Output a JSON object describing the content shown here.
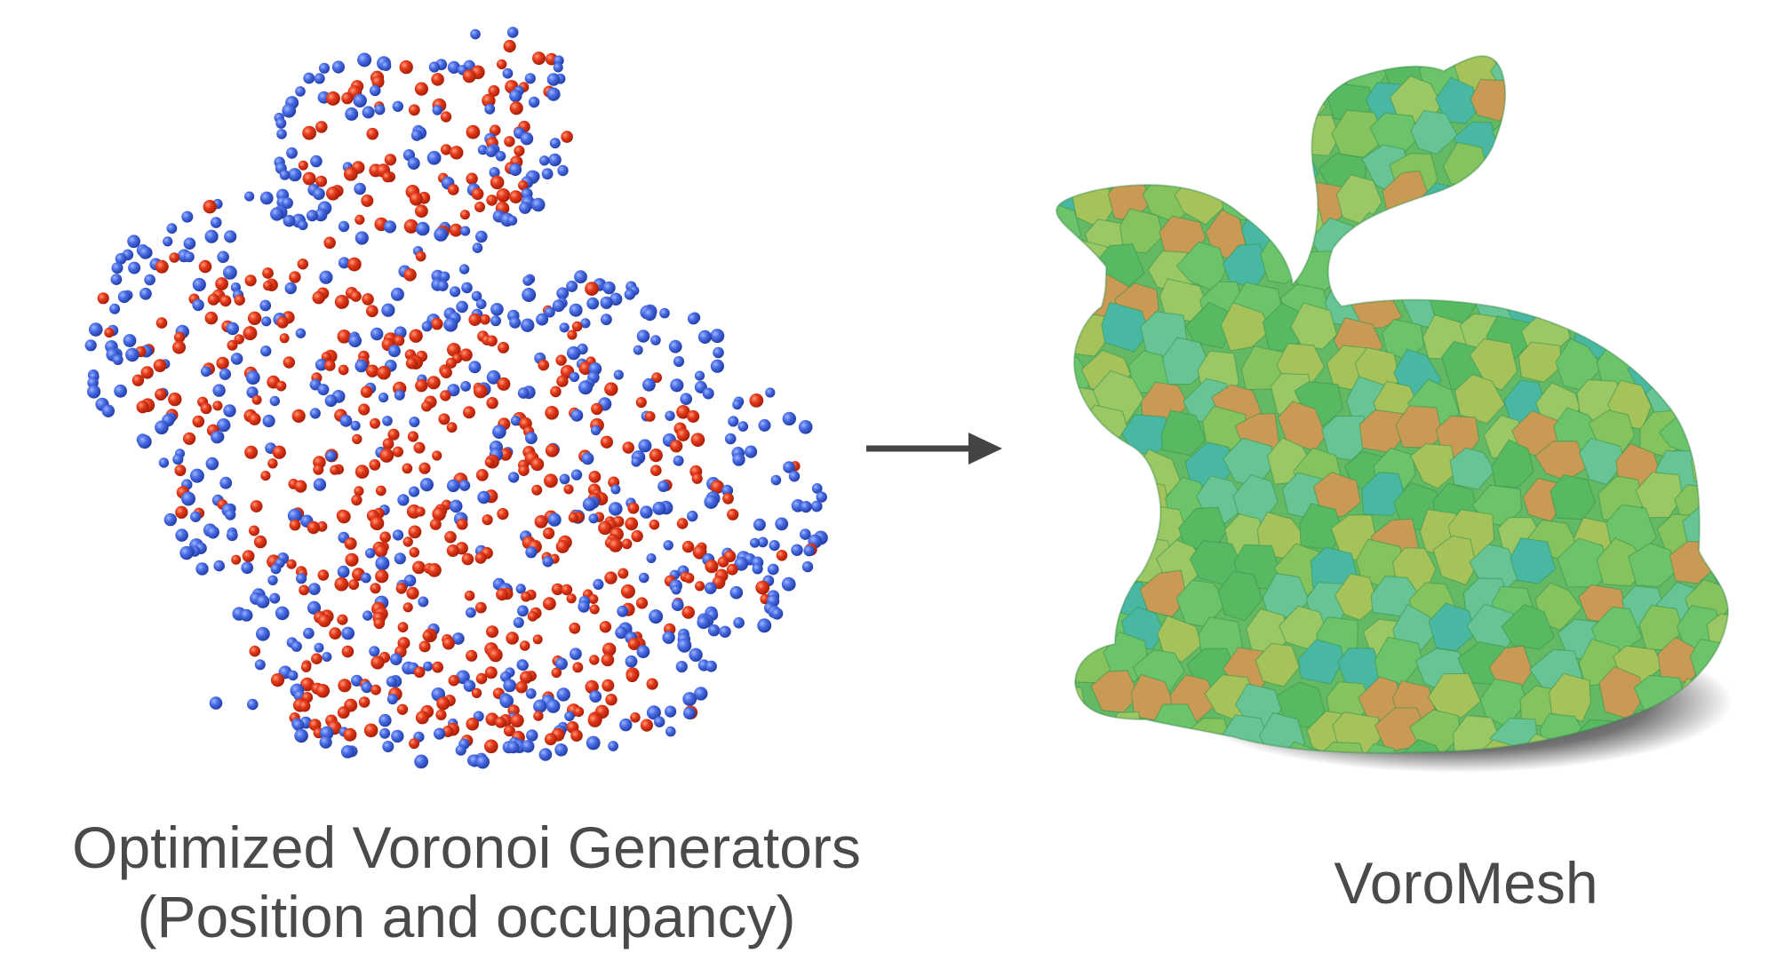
{
  "left_panel": {
    "caption_line1": "Optimized Voronoi Generators",
    "caption_line2": "(Position and occupancy)",
    "point_colors": {
      "outside": "#3f63e0",
      "inside": "#e23b1c"
    }
  },
  "right_panel": {
    "caption": "VoroMesh",
    "cell_palette": [
      "#5ec46a",
      "#74cf72",
      "#8fcf64",
      "#b3cf62",
      "#4fc3b0",
      "#d9a25b",
      "#6fd0a0",
      "#a8d46c"
    ]
  },
  "arrow": {
    "color": "#444444"
  }
}
